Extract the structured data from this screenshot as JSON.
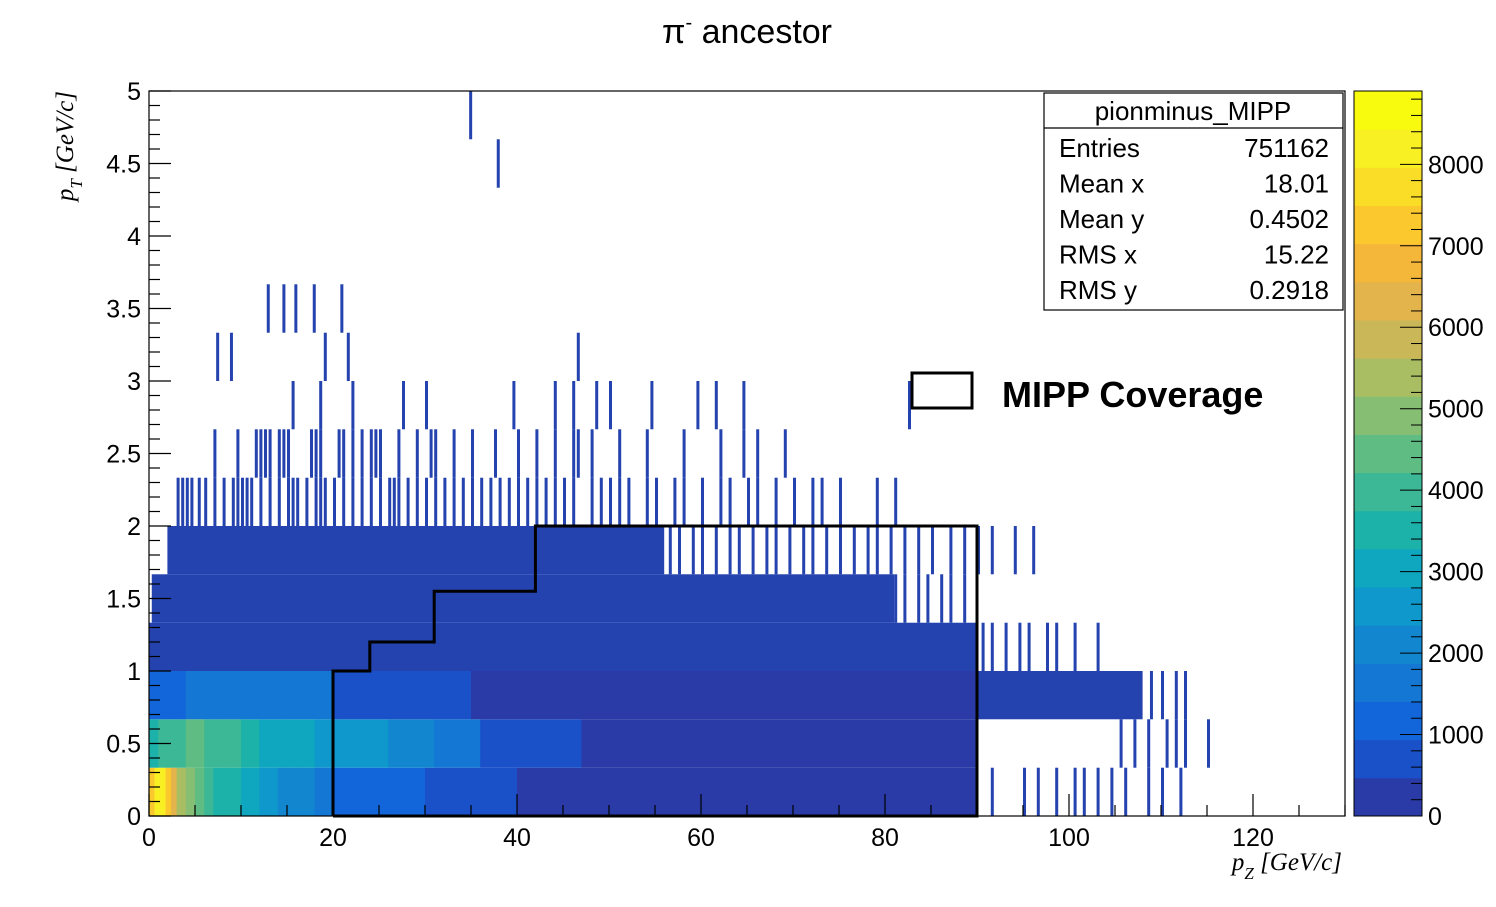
{
  "chart_data": {
    "type": "heatmap",
    "title_main": "π",
    "title_sup": "-",
    "title_rest": " ancestor",
    "xlabel_main": "p",
    "xlabel_sub": "Z",
    "xlabel_rest": " [GeV/c]",
    "ylabel_main": "p",
    "ylabel_sub": "T",
    "ylabel_rest": " [GeV/c]",
    "xlim": [
      0,
      130
    ],
    "ylim": [
      0,
      5
    ],
    "zlim": [
      0,
      8900
    ],
    "x_ticks": [
      0,
      20,
      40,
      60,
      80,
      100,
      120
    ],
    "x_tick_labels": [
      "0",
      "20",
      "40",
      "60",
      "80",
      "100",
      "120"
    ],
    "y_ticks": [
      0,
      0.5,
      1,
      1.5,
      2,
      2.5,
      3,
      3.5,
      4,
      4.5,
      5
    ],
    "y_tick_labels": [
      "0",
      "0.5",
      "1",
      "1.5",
      "2",
      "2.5",
      "3",
      "3.5",
      "4",
      "4.5",
      "5"
    ],
    "z_ticks": [
      0,
      1000,
      2000,
      3000,
      4000,
      5000,
      6000,
      7000,
      8000
    ],
    "z_tick_labels": [
      "0",
      "1000",
      "2000",
      "3000",
      "4000",
      "5000",
      "6000",
      "7000",
      "8000"
    ],
    "y_bin_edges": [
      0,
      0.333,
      0.667,
      1.0,
      1.333,
      1.667,
      2.0,
      2.333,
      2.667,
      3.0,
      3.333,
      3.667,
      4.0,
      4.333,
      4.667,
      5.0
    ],
    "density_rows": [
      {
        "y_bin": 0,
        "segments": [
          {
            "x0": 0,
            "x1": 0.6,
            "z": 7300
          },
          {
            "x0": 0.6,
            "x1": 1.2,
            "z": 8300
          },
          {
            "x0": 1.2,
            "x1": 1.8,
            "z": 8000
          },
          {
            "x0": 1.8,
            "x1": 2.4,
            "z": 7100
          },
          {
            "x0": 2.4,
            "x1": 3.0,
            "z": 6300
          },
          {
            "x0": 3.0,
            "x1": 4.0,
            "z": 5200
          },
          {
            "x0": 4.0,
            "x1": 5.0,
            "z": 4900
          },
          {
            "x0": 5.0,
            "x1": 6.0,
            "z": 4400
          },
          {
            "x0": 6.0,
            "x1": 7.0,
            "z": 4100
          },
          {
            "x0": 7.0,
            "x1": 8.5,
            "z": 3700
          },
          {
            "x0": 8.5,
            "x1": 10.0,
            "z": 3300
          },
          {
            "x0": 10.0,
            "x1": 12.0,
            "z": 3000
          },
          {
            "x0": 12.0,
            "x1": 14.0,
            "z": 2700
          },
          {
            "x0": 14.0,
            "x1": 16.0,
            "z": 2300
          },
          {
            "x0": 16.0,
            "x1": 18.0,
            "z": 2000
          },
          {
            "x0": 18.0,
            "x1": 20.0,
            "z": 1700
          },
          {
            "x0": 20.0,
            "x1": 24.0,
            "z": 1400
          },
          {
            "x0": 24.0,
            "x1": 30.0,
            "z": 1100
          },
          {
            "x0": 30.0,
            "x1": 40.0,
            "z": 700
          },
          {
            "x0": 40.0,
            "x1": 90.0,
            "z": 200
          }
        ]
      },
      {
        "y_bin": 1,
        "segments": [
          {
            "x0": 0,
            "x1": 1.0,
            "z": 3600
          },
          {
            "x0": 1.0,
            "x1": 2.0,
            "z": 4200
          },
          {
            "x0": 2.0,
            "x1": 3.0,
            "z": 4000
          },
          {
            "x0": 3.0,
            "x1": 4.0,
            "z": 3800
          },
          {
            "x0": 4.0,
            "x1": 6.0,
            "z": 4300
          },
          {
            "x0": 6.0,
            "x1": 8.0,
            "z": 3900
          },
          {
            "x0": 8.0,
            "x1": 10.0,
            "z": 4100
          },
          {
            "x0": 10.0,
            "x1": 12.0,
            "z": 3300
          },
          {
            "x0": 12.0,
            "x1": 15.0,
            "z": 3100
          },
          {
            "x0": 15.0,
            "x1": 18.0,
            "z": 2900
          },
          {
            "x0": 18.0,
            "x1": 21.0,
            "z": 2700
          },
          {
            "x0": 21.0,
            "x1": 26.0,
            "z": 2400
          },
          {
            "x0": 26.0,
            "x1": 31.0,
            "z": 2100
          },
          {
            "x0": 31.0,
            "x1": 36.0,
            "z": 1800
          },
          {
            "x0": 36.0,
            "x1": 47.0,
            "z": 900
          },
          {
            "x0": 47.0,
            "x1": 90.0,
            "z": 200
          }
        ]
      },
      {
        "y_bin": 2,
        "segments": [
          {
            "x0": 0,
            "x1": 4.0,
            "z": 1200
          },
          {
            "x0": 4.0,
            "x1": 20.0,
            "z": 1500
          },
          {
            "x0": 20.0,
            "x1": 35.0,
            "z": 900
          },
          {
            "x0": 35.0,
            "x1": 90.0,
            "z": 200
          }
        ]
      }
    ],
    "filled_rows": [
      {
        "y_bin": 2,
        "x0": 90.0,
        "x1": 108.0
      },
      {
        "y_bin": 3,
        "x0": 0,
        "x1": 90.0
      },
      {
        "y_bin": 4,
        "x0": 0.3,
        "x1": 81.0
      },
      {
        "y_bin": 5,
        "x0": 2.0,
        "x1": 56.0
      }
    ],
    "spikes": [
      {
        "y_bin": 0,
        "x": [
          91.5,
          95.0,
          96.5,
          98.5,
          100.5,
          101.5,
          103.0,
          104.5,
          106.0,
          108.5,
          110.0,
          112.0
        ]
      },
      {
        "y_bin": 1,
        "x": [
          105.5,
          107.0,
          108.5,
          110.5,
          111.5,
          112.5,
          115.0
        ]
      },
      {
        "y_bin": 2,
        "x": [
          108.8,
          110.0,
          111.5,
          112.5
        ]
      },
      {
        "y_bin": 3,
        "x": [
          90.5,
          91.5,
          93.0,
          94.5,
          95.5,
          97.5,
          98.5,
          100.5,
          103.0
        ]
      },
      {
        "y_bin": 4,
        "x": [
          81.0,
          82.0,
          83.5,
          84.5,
          86.0,
          87.0,
          88.5
        ]
      },
      {
        "y_bin": 5,
        "x": [
          56.5,
          57.5,
          59.0,
          60.0,
          61.5,
          63.0,
          64.0,
          65.5,
          67.0,
          68.0,
          69.5,
          71.0,
          72.0,
          73.5,
          75.0,
          76.5,
          78.0,
          79.0,
          80.5,
          82.0,
          83.5,
          85.0,
          87.0,
          88.5,
          90.0,
          91.5,
          94.0,
          96.0
        ]
      },
      {
        "y_bin": 6,
        "x": [
          3.0,
          3.5,
          4.0,
          4.5,
          5.3,
          6.0,
          7.0,
          8.0,
          9.0,
          9.5,
          10.0,
          10.5,
          11.0,
          12.0,
          13.0,
          14.0,
          15.0,
          15.5,
          16.0,
          17.0,
          18.0,
          18.5,
          19.0,
          20.0,
          21.0,
          22.0,
          23.0,
          24.0,
          25.0,
          26.0,
          26.5,
          27.0,
          28.0,
          29.0,
          30.0,
          31.0,
          32.0,
          33.0,
          34.0,
          35.0,
          36.0,
          37.0,
          38.0,
          39.0,
          40.0,
          41.0,
          42.0,
          43.0,
          44.0,
          45.0,
          46.0,
          48.0,
          49.0,
          50.0,
          51.0,
          52.0,
          54.0,
          55.0,
          57.0,
          58.0,
          60.0,
          62.0,
          63.0,
          65.0,
          66.0,
          68.0,
          70.0,
          72.0,
          73.0,
          75.0,
          79.0,
          81.0
        ]
      },
      {
        "y_bin": 7,
        "x": [
          7.0,
          9.5,
          11.5,
          12.0,
          12.5,
          13.0,
          14.0,
          14.5,
          15.0,
          17.5,
          18.0,
          18.5,
          20.5,
          21.0,
          22.0,
          23.0,
          24.0,
          24.5,
          25.0,
          27.0,
          29.0,
          30.5,
          31.0,
          33.0,
          35.0,
          37.5,
          40.0,
          42.0,
          44.0,
          46.0,
          46.5,
          48.0,
          51.0,
          54.0,
          58.0,
          62.0,
          64.5,
          66.0,
          69.0
        ]
      },
      {
        "y_bin": 8,
        "x": [
          15.5,
          18.5,
          22.0,
          27.5,
          30.0,
          39.5,
          44.0,
          46.0,
          48.5,
          50.0,
          54.5,
          59.5,
          61.5,
          64.5,
          82.5
        ]
      },
      {
        "y_bin": 9,
        "x": [
          7.3,
          8.8,
          19.0,
          21.5,
          46.5
        ]
      },
      {
        "y_bin": 10,
        "x": [
          12.8,
          14.5,
          15.8,
          17.8,
          20.8
        ]
      },
      {
        "y_bin": 13,
        "x": [
          37.8
        ]
      },
      {
        "y_bin": 14,
        "x": [
          34.8
        ]
      }
    ],
    "coverage_polygon": {
      "x": [
        20,
        20,
        24,
        24,
        31,
        31,
        42,
        42,
        90,
        90,
        20
      ],
      "y": [
        0,
        1.0,
        1.0,
        1.2,
        1.2,
        1.55,
        1.55,
        2.0,
        2.0,
        0,
        0
      ]
    },
    "legend": {
      "label": "MIPP Coverage"
    },
    "stats": {
      "name": "pionminus_MIPP",
      "rows": [
        {
          "label": "Entries",
          "value": "751162"
        },
        {
          "label": "Mean x",
          "value": "18.01"
        },
        {
          "label": "Mean y",
          "value": "0.4502"
        },
        {
          "label": "RMS x",
          "value": "15.22"
        },
        {
          "label": "RMS y",
          "value": "0.2918"
        }
      ]
    },
    "colors": {
      "axis": "#000000",
      "fill_low": "#2443ae",
      "palette": [
        "#2a3aa6",
        "#1a50c8",
        "#1366d9",
        "#1377d3",
        "#1286cf",
        "#0f98cb",
        "#0ea7bf",
        "#1cb1a9",
        "#3cb896",
        "#5fbd84",
        "#86bf73",
        "#a9bd62",
        "#cab757",
        "#e2b44b",
        "#f5b73a",
        "#fbc82e",
        "#f9dd26",
        "#f8f022",
        "#f9fb0e"
      ]
    }
  }
}
